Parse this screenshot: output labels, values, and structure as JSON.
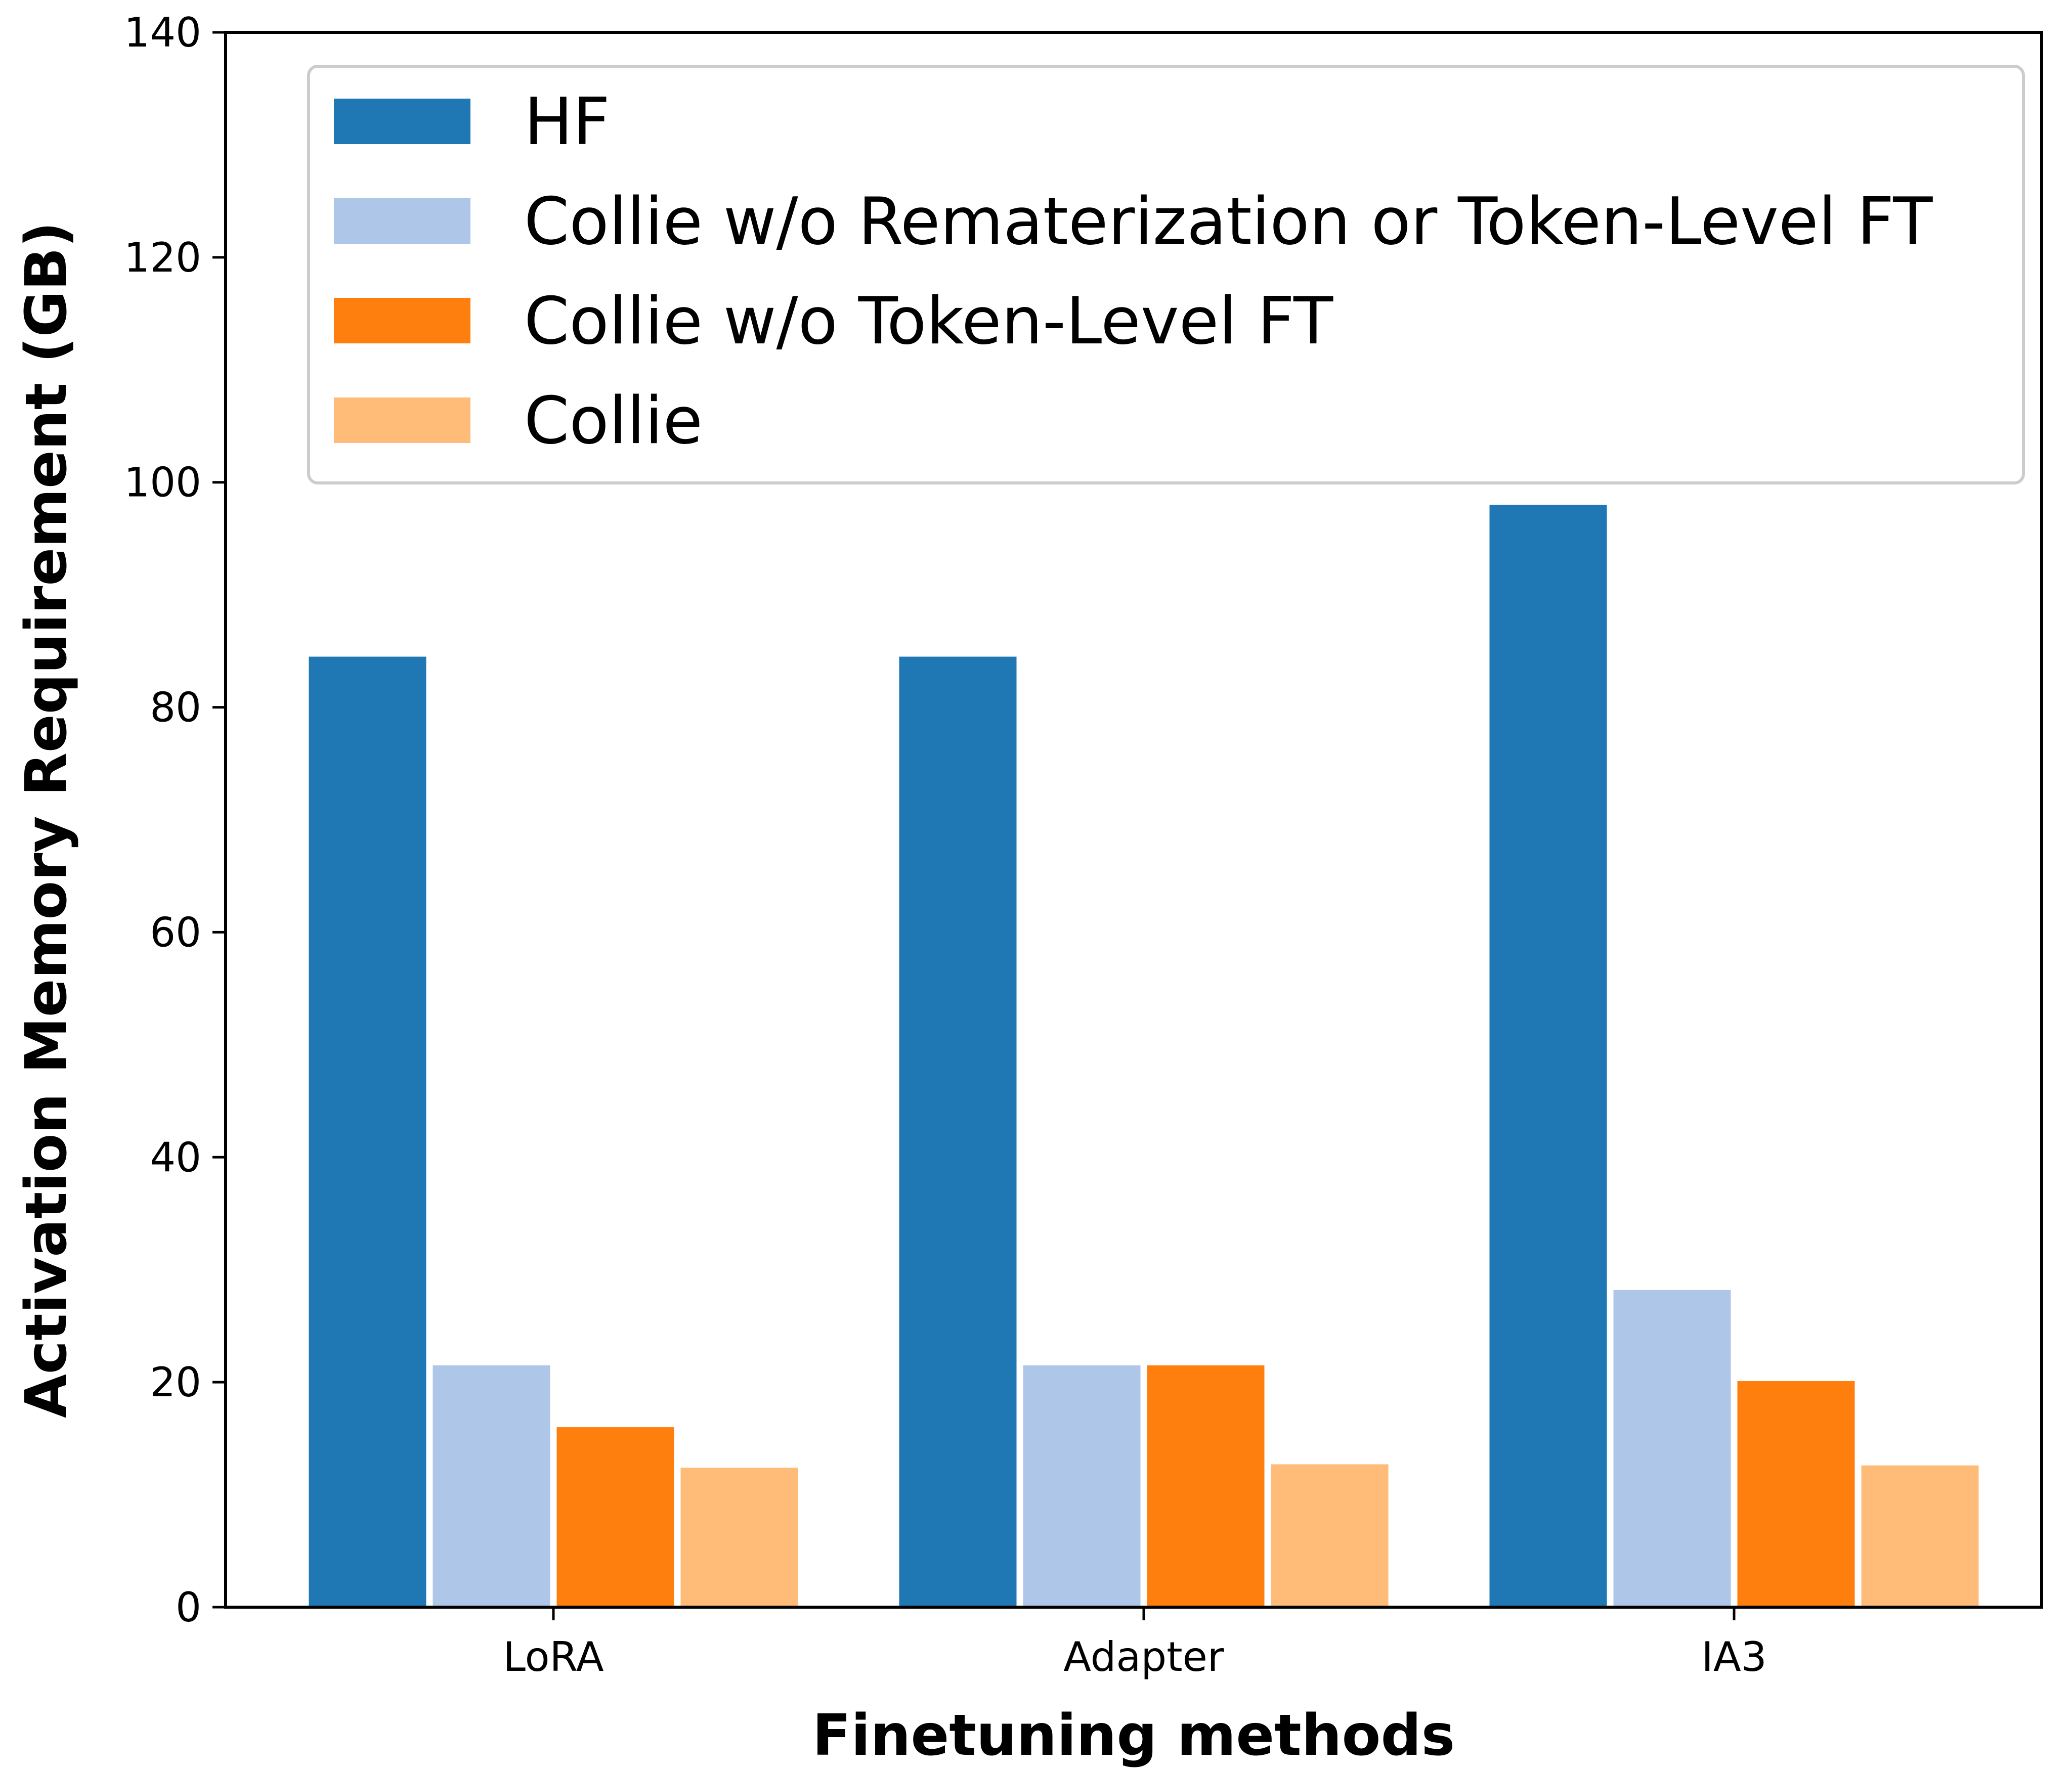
{
  "chart_data": {
    "type": "bar",
    "title": "",
    "xlabel": "Finetuning methods",
    "ylabel": "Activation Memory Requirement (GB)",
    "ylim": [
      0,
      140
    ],
    "yticks": [
      "0",
      "20",
      "40",
      "60",
      "80",
      "100",
      "120",
      "140"
    ],
    "categories": [
      "LoRA",
      "Adapter",
      "IA3"
    ],
    "series": [
      {
        "name": "HF",
        "color": "#1f77b4",
        "values": [
          84.5,
          84.5,
          98.0
        ]
      },
      {
        "name": "Collie w/o Rematerization or Token-Level FT",
        "color": "#aec7e8",
        "values": [
          21.5,
          21.5,
          28.2
        ]
      },
      {
        "name": "Collie w/o Token-Level FT",
        "color": "#ff7f0e",
        "values": [
          16.0,
          21.5,
          20.1
        ]
      },
      {
        "name": "Collie",
        "color": "#ffbb78",
        "values": [
          12.4,
          12.7,
          12.6
        ]
      }
    ],
    "legend_position": "top",
    "grid": false
  }
}
